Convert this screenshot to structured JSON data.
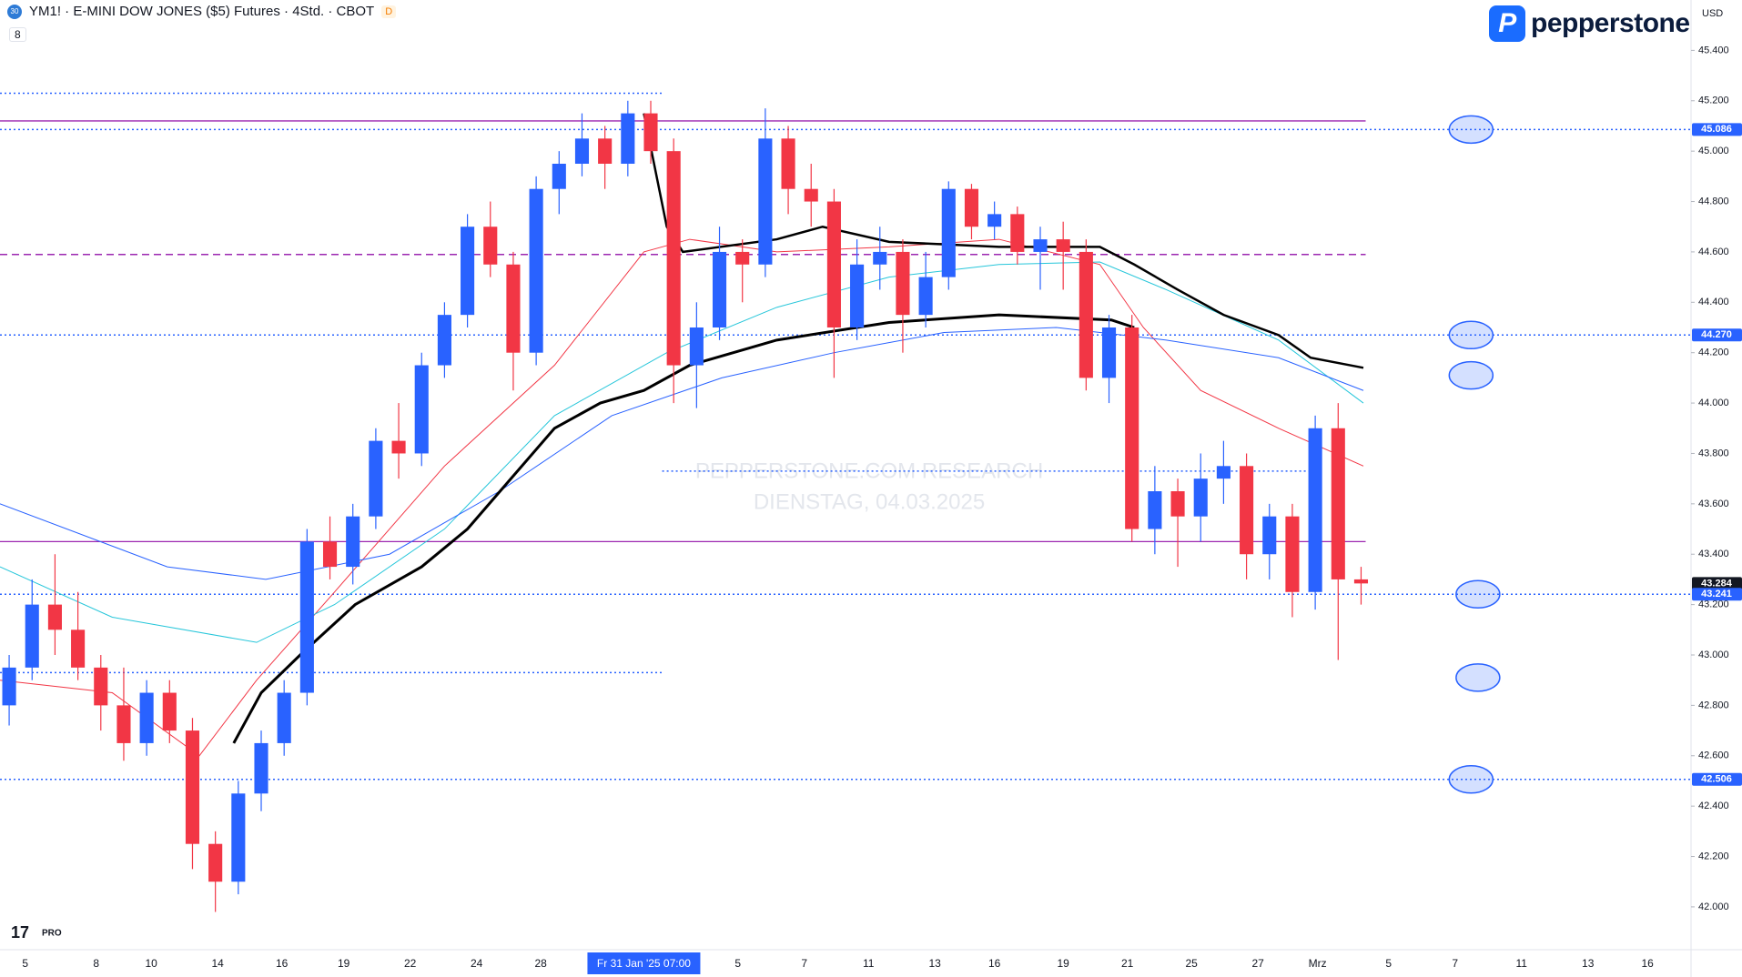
{
  "header": {
    "symbol_badge": "30",
    "title": "YM1! · E-MINI DOW JONES ($5) Futures · 4Std. · CBOT",
    "badge": "D",
    "indicator_count": "8"
  },
  "brand": "pepperstone",
  "currency": "USD",
  "tv_logo": "PRO",
  "watermark": [
    "PEPPERSTONE.COM RESEARCH",
    "DIENSTAG, 04.03.2025"
  ],
  "chart_data": {
    "type": "candlestick",
    "up_color": "#2962ff",
    "down_color": "#f23645",
    "xlim": [
      -0.4,
      73.4
    ],
    "ylim": [
      41830,
      45600
    ],
    "grid": false,
    "open": [
      42800,
      42950,
      43200,
      43100,
      42950,
      42800,
      42650,
      42850,
      42700,
      42250,
      42100,
      42450,
      42650,
      42850,
      43450,
      43350,
      43550,
      43850,
      43800,
      44150,
      44350,
      44700,
      44550,
      44200,
      44850,
      44950,
      45050,
      44950,
      45150,
      45000,
      44150,
      44300,
      44600,
      44550,
      45050,
      44850,
      44800,
      44300,
      44550,
      44600,
      44350,
      44500,
      44850,
      44700,
      44750,
      44600,
      44650,
      44600,
      44100,
      44300,
      43500,
      43650,
      43550,
      43700,
      43750,
      43400,
      43550,
      43250,
      43900,
      43300
    ],
    "high": [
      43000,
      43300,
      43400,
      43250,
      43000,
      42950,
      42900,
      42900,
      42750,
      42300,
      42500,
      42700,
      42900,
      43500,
      43550,
      43600,
      43900,
      44000,
      44200,
      44400,
      44750,
      44800,
      44600,
      44900,
      45000,
      45150,
      45100,
      45200,
      45200,
      45050,
      44400,
      44700,
      44650,
      45170,
      45100,
      44950,
      44850,
      44650,
      44700,
      44650,
      44600,
      44880,
      44870,
      44800,
      44780,
      44700,
      44720,
      44650,
      44350,
      44350,
      43750,
      43700,
      43800,
      43850,
      43800,
      43600,
      43600,
      43950,
      44000,
      43350
    ],
    "low": [
      42720,
      42900,
      43000,
      42900,
      42700,
      42580,
      42600,
      42650,
      42150,
      41980,
      42050,
      42380,
      42600,
      42800,
      43300,
      43280,
      43500,
      43700,
      43750,
      44100,
      44300,
      44500,
      44050,
      44150,
      44750,
      44900,
      44850,
      44900,
      44950,
      44000,
      43980,
      44250,
      44400,
      44500,
      44750,
      44700,
      44100,
      44250,
      44450,
      44200,
      44300,
      44450,
      44650,
      44650,
      44550,
      44450,
      44450,
      44050,
      44000,
      43450,
      43400,
      43350,
      43450,
      43600,
      43300,
      43300,
      43150,
      43180,
      42980,
      43200
    ],
    "close": [
      42950,
      43200,
      43100,
      42950,
      42800,
      42650,
      42850,
      42700,
      42250,
      42100,
      42450,
      42650,
      42850,
      43450,
      43350,
      43550,
      43850,
      43800,
      44150,
      44350,
      44700,
      44550,
      44200,
      44850,
      44950,
      45050,
      44950,
      45150,
      45000,
      44150,
      44300,
      44600,
      44550,
      45050,
      44850,
      44800,
      44300,
      44550,
      44600,
      44350,
      44500,
      44850,
      44700,
      44750,
      44600,
      44650,
      44600,
      44100,
      44300,
      43500,
      43650,
      43550,
      43700,
      43750,
      43400,
      43550,
      43250,
      43900,
      43300,
      43284
    ],
    "xticks": [
      {
        "value": 0.7,
        "label": "5"
      },
      {
        "value": 3.8,
        "label": "8"
      },
      {
        "value": 6.2,
        "label": "10"
      },
      {
        "value": 9.1,
        "label": "14"
      },
      {
        "value": 11.9,
        "label": "16"
      },
      {
        "value": 14.6,
        "label": "19"
      },
      {
        "value": 17.5,
        "label": "22"
      },
      {
        "value": 20.4,
        "label": "24"
      },
      {
        "value": 23.2,
        "label": "28"
      },
      {
        "value": 27.7,
        "label": "Fr 31 Jan '25  07:00"
      },
      {
        "value": 31.8,
        "label": "5"
      },
      {
        "value": 34.7,
        "label": "7"
      },
      {
        "value": 37.5,
        "label": "11"
      },
      {
        "value": 40.4,
        "label": "13"
      },
      {
        "value": 43,
        "label": "16"
      },
      {
        "value": 46,
        "label": "19"
      },
      {
        "value": 48.8,
        "label": "21"
      },
      {
        "value": 51.6,
        "label": "25"
      },
      {
        "value": 54.5,
        "label": "27"
      },
      {
        "value": 57.1,
        "label": "Mrz"
      },
      {
        "value": 60.2,
        "label": "5"
      },
      {
        "value": 63.1,
        "label": "7"
      },
      {
        "value": 66,
        "label": "11"
      },
      {
        "value": 68.9,
        "label": "13"
      },
      {
        "value": 71.5,
        "label": "16"
      }
    ],
    "crosshair_x": 27.7,
    "yticks": [
      {
        "value": 45400,
        "label": "45.400"
      },
      {
        "value": 45200,
        "label": "45.200"
      },
      {
        "value": 45000,
        "label": "45.000"
      },
      {
        "value": 44800,
        "label": "44.800"
      },
      {
        "value": 44600,
        "label": "44.600"
      },
      {
        "value": 44400,
        "label": "44.400"
      },
      {
        "value": 44200,
        "label": "44.200"
      },
      {
        "value": 44000,
        "label": "44.000"
      },
      {
        "value": 43800,
        "label": "43.800"
      },
      {
        "value": 43600,
        "label": "43.600"
      },
      {
        "value": 43400,
        "label": "43.400"
      },
      {
        "value": 43200,
        "label": "43.200"
      },
      {
        "value": 43000,
        "label": "43.000"
      },
      {
        "value": 42800,
        "label": "42.800"
      },
      {
        "value": 42600,
        "label": "42.600"
      },
      {
        "value": 42400,
        "label": "42.400"
      },
      {
        "value": 42200,
        "label": "42.200"
      },
      {
        "value": 42000,
        "label": "42.000"
      }
    ],
    "overlays": [
      {
        "color": "#f23645",
        "width": 1,
        "x": [
          -0.4,
          4.5,
          8.3,
          10.8,
          14.2,
          19,
          23.8,
          27.7,
          29.7,
          33.5,
          38.4,
          43.2,
          47.6,
          49.5,
          52,
          55.4,
          59.1
        ],
        "values": [
          42900,
          42850,
          42600,
          42900,
          43250,
          43750,
          44150,
          44600,
          44650,
          44600,
          44620,
          44650,
          44550,
          44300,
          44050,
          43900,
          43750
        ]
      },
      {
        "color": "#26c6da",
        "width": 1,
        "x": [
          -0.4,
          4.5,
          10.8,
          14.2,
          19,
          23.8,
          28.7,
          33.5,
          38.4,
          43.2,
          47.6,
          50.5,
          55.4,
          59.1
        ],
        "values": [
          43350,
          43150,
          43050,
          43200,
          43500,
          43950,
          44200,
          44380,
          44500,
          44550,
          44560,
          44450,
          44250,
          44000
        ]
      },
      {
        "color": "#2962ff",
        "width": 1,
        "x": [
          -0.4,
          6.9,
          11.2,
          16.6,
          21.4,
          26.3,
          31.1,
          36,
          40.8,
          45.7,
          50.5,
          55.4,
          59.1
        ],
        "values": [
          43600,
          43350,
          43300,
          43400,
          43650,
          43950,
          44100,
          44200,
          44280,
          44300,
          44250,
          44180,
          44050
        ]
      },
      {
        "color": "#000000",
        "width": 3,
        "x": [
          9.8,
          11,
          12.7,
          15.1,
          18,
          20,
          21.9,
          23.8,
          25.8,
          27.7,
          29.7,
          33.5,
          38.4,
          43.2,
          48.1,
          49.1
        ],
        "values": [
          42650,
          42850,
          43000,
          43200,
          43350,
          43500,
          43700,
          43900,
          44000,
          44050,
          44150,
          44250,
          44320,
          44350,
          44330,
          44300
        ]
      },
      {
        "color": "#000000",
        "width": 2.5,
        "x": [
          27.7,
          28.7,
          29.4,
          33.5,
          35.5,
          38.4,
          43.2,
          47.6,
          49.1,
          51,
          53,
          55.4,
          56.8,
          59.1
        ],
        "values": [
          45150,
          44700,
          44600,
          44650,
          44700,
          44640,
          44620,
          44620,
          44550,
          44450,
          44350,
          44270,
          44180,
          44140
        ]
      }
    ],
    "levels": [
      {
        "value": 45086,
        "color": "#2962ff",
        "style": "dotted"
      },
      {
        "value": 45230,
        "color": "#2962ff",
        "style": "dotted",
        "span": [
          -0.4,
          28.5
        ]
      },
      {
        "value": 45120,
        "color": "#9c27b0",
        "style": "solid",
        "span": [
          -0.4,
          59.2
        ]
      },
      {
        "value": 44590,
        "color": "#9c27b0",
        "style": "dashed",
        "span": [
          -0.4,
          59.2
        ]
      },
      {
        "value": 44270,
        "color": "#2962ff",
        "style": "dotted"
      },
      {
        "value": 43730,
        "color": "#2962ff",
        "style": "dotted",
        "span": [
          28.5,
          57.2
        ]
      },
      {
        "value": 43450,
        "color": "#9c27b0",
        "style": "solid",
        "span": [
          -0.4,
          59.2
        ]
      },
      {
        "value": 43241,
        "color": "#2962ff",
        "style": "dotted"
      },
      {
        "value": 42930,
        "color": "#2962ff",
        "style": "dotted",
        "span": [
          -0.4,
          28.5
        ]
      },
      {
        "value": 42506,
        "color": "#2962ff",
        "style": "dotted"
      }
    ],
    "ellipses": [
      {
        "x": 63.8,
        "value": 45086
      },
      {
        "x": 63.8,
        "value": 44270
      },
      {
        "x": 63.8,
        "value": 44110
      },
      {
        "x": 64.1,
        "value": 43241
      },
      {
        "x": 64.1,
        "value": 42910
      },
      {
        "x": 63.8,
        "value": 42506
      }
    ],
    "price_labels": [
      {
        "value": 45086,
        "label": "45.086",
        "color": "#2962ff"
      },
      {
        "value": 44270,
        "label": "44.270",
        "color": "#2962ff"
      },
      {
        "value": 43284,
        "label": "43.284",
        "color": "#131722"
      },
      {
        "value": 43241,
        "label": "43.241",
        "color": "#2962ff"
      },
      {
        "value": 42506,
        "label": "42.506",
        "color": "#2962ff"
      }
    ]
  }
}
